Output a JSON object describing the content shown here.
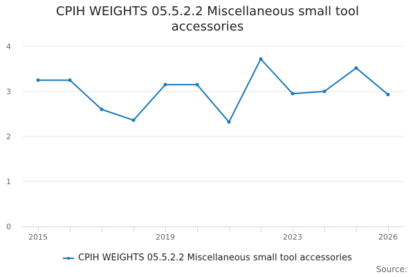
{
  "chart_data": {
    "type": "line",
    "title": "CPIH WEIGHTS 05.5.2.2 Miscellaneous small tool accessories",
    "xlabel": "",
    "ylabel": "",
    "x": [
      2015,
      2016,
      2017,
      2018,
      2019,
      2020,
      2021,
      2022,
      2023,
      2024,
      2025,
      2026
    ],
    "x_tick_labels": [
      "2015",
      "2019",
      "2023",
      "2026"
    ],
    "y_tick_labels": [
      "0",
      "1",
      "2",
      "3",
      "4"
    ],
    "ylim": [
      0,
      4
    ],
    "series": [
      {
        "name": "CPIH WEIGHTS 05.5.2.2 Miscellaneous small tool accessories",
        "values": [
          3.25,
          3.25,
          2.6,
          2.36,
          3.15,
          3.15,
          2.32,
          3.72,
          2.95,
          3.0,
          3.52,
          2.93
        ]
      }
    ],
    "grid": true,
    "legend_position": "bottom",
    "colors": {
      "series": "#1a7ab9",
      "grid": "#e6e6e6",
      "axis": "#ccd6eb",
      "text": "#222222",
      "muted": "#666666"
    }
  },
  "credits": "Source:"
}
